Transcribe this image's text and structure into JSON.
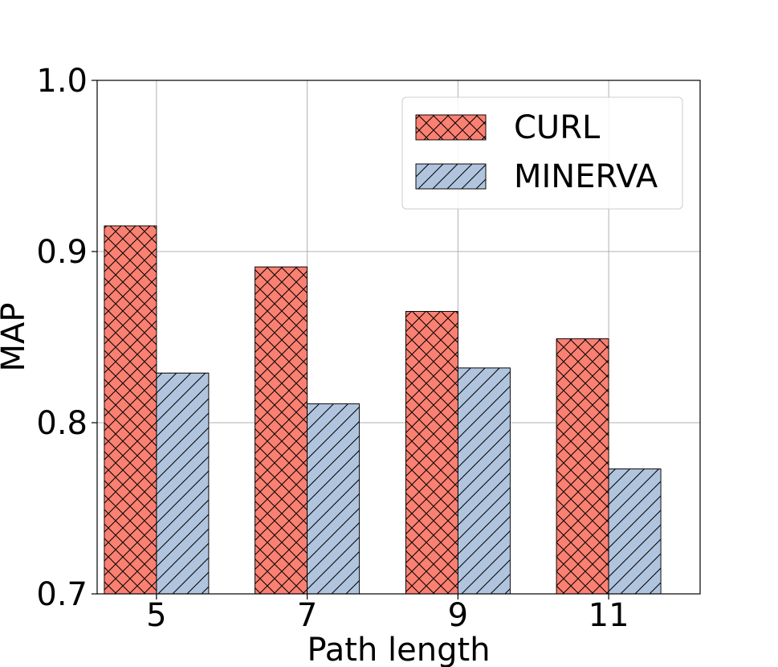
{
  "chart_data": {
    "type": "bar",
    "title": "",
    "xlabel": "Path length",
    "ylabel": "MAP",
    "categories": [
      "5",
      "7",
      "9",
      "11"
    ],
    "series": [
      {
        "name": "CURL",
        "values": [
          0.915,
          0.891,
          0.865,
          0.849
        ],
        "color": "#fa8072",
        "hatch": "crosshatch"
      },
      {
        "name": "MINERVA",
        "values": [
          0.829,
          0.811,
          0.832,
          0.773
        ],
        "color": "#b0c4de",
        "hatch": "diagonal"
      }
    ],
    "ylim": [
      0.7,
      1.0
    ],
    "yticks": [
      "0.7",
      "0.8",
      "0.9",
      "1.0"
    ],
    "grid": true,
    "legend_position": "top-right"
  }
}
